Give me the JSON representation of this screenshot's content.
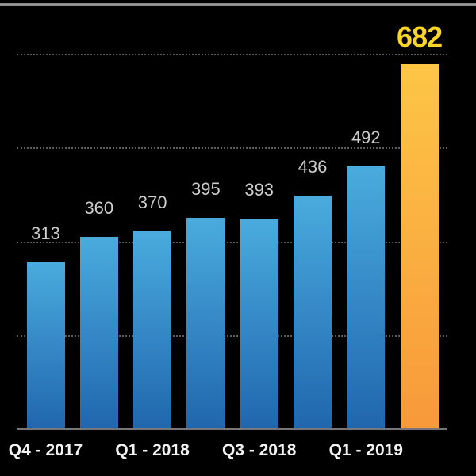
{
  "chart_data": {
    "type": "bar",
    "categories": [
      "Q4 - 2017",
      "",
      "Q1 - 2018",
      "",
      "Q3 - 2018",
      "",
      "Q1 - 2019",
      ""
    ],
    "values": [
      313,
      360,
      370,
      395,
      393,
      436,
      492,
      682
    ],
    "value_labels": [
      "313",
      "360",
      "370",
      "395",
      "393",
      "436",
      "492",
      "682"
    ],
    "highlight_index": 7,
    "title": "",
    "xlabel": "",
    "ylabel": "",
    "ylim": [
      0,
      700
    ],
    "gridline_values": [
      175,
      350,
      525,
      700
    ],
    "grid": "horizontal-dotted",
    "legend": "none",
    "colors": {
      "background": "#000000",
      "bar_gradient_top": "#4aabdd",
      "bar_gradient_bottom": "#2066ae",
      "highlight_gradient_top": "#fdc546",
      "highlight_gradient_bottom": "#f8993a",
      "highlight_label": "#fbd524",
      "value_label": "#cccccc",
      "axis_label": "#f2f2f2",
      "axis_line": "#767676",
      "gridline": "#5c5c5c",
      "top_border": "#9e9e9e"
    }
  }
}
